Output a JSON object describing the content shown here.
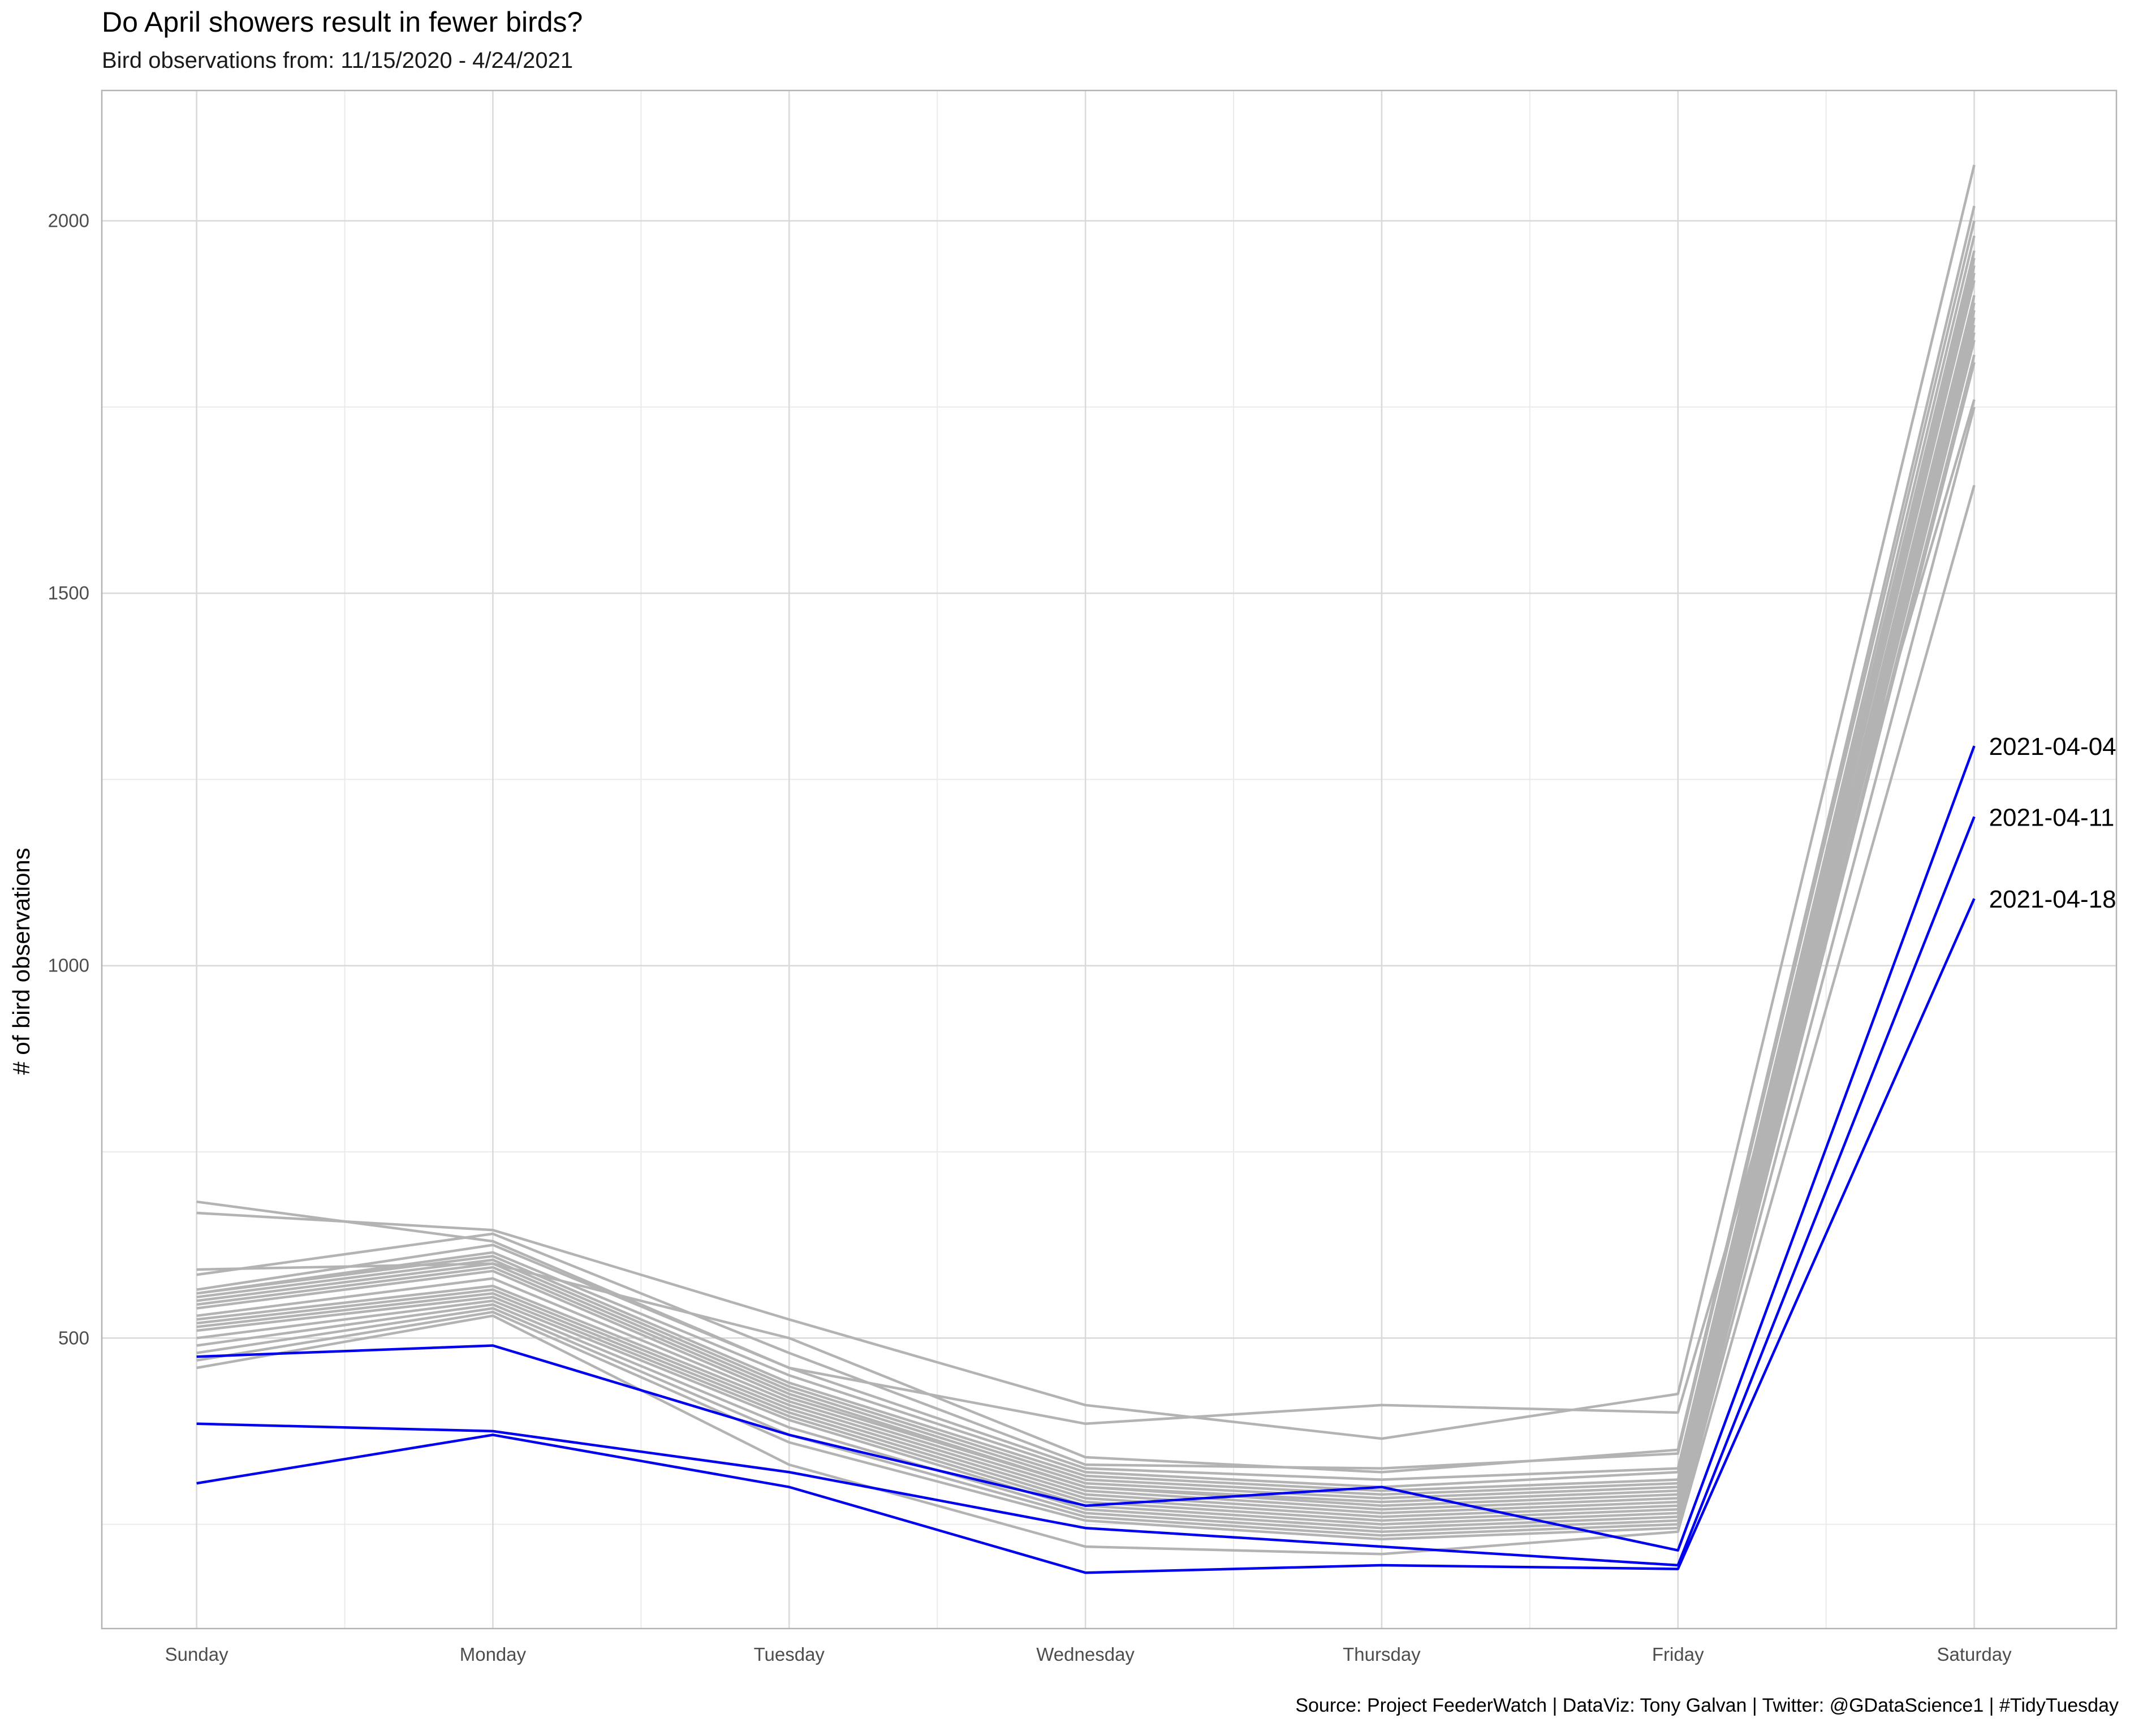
{
  "chart_data": {
    "type": "line",
    "title": "Do April showers result in fewer birds?",
    "subtitle": "Bird observations from: 11/15/2020 - 4/24/2021",
    "caption": "Source: Project FeederWatch  |  DataViz: Tony Galvan  |  Twitter: @GDataScience1  |  #TidyTuesday",
    "xlabel": "",
    "ylabel": "# of bird observations",
    "categories": [
      "Sunday",
      "Monday",
      "Tuesday",
      "Wednesday",
      "Thursday",
      "Friday",
      "Saturday"
    ],
    "ylim": [
      110,
      2175
    ],
    "yticks": [
      500,
      1000,
      1500,
      2000
    ],
    "grid": true,
    "colors": {
      "background_series": "#b3b3b3",
      "highlight_series": "#0000ee",
      "grid_major": "#d9d9d9",
      "grid_minor": "#ebebeb",
      "panel_border": "#b3b3b3"
    },
    "series": [
      {
        "values": [
          683,
          630,
          460,
          385,
          410,
          400,
          1760
        ],
        "highlight": false
      },
      {
        "values": [
          668,
          645,
          525,
          410,
          365,
          425,
          2075
        ],
        "highlight": false
      },
      {
        "values": [
          592,
          600,
          500,
          340,
          320,
          350,
          2020
        ],
        "highlight": false
      },
      {
        "values": [
          585,
          640,
          480,
          330,
          325,
          345,
          2000
        ],
        "highlight": false
      },
      {
        "values": [
          565,
          625,
          460,
          325,
          310,
          325,
          1980
        ],
        "highlight": false
      },
      {
        "values": [
          560,
          615,
          450,
          320,
          300,
          320,
          1960
        ],
        "highlight": false
      },
      {
        "values": [
          560,
          610,
          440,
          315,
          295,
          310,
          1950
        ],
        "highlight": false
      },
      {
        "values": [
          555,
          605,
          435,
          310,
          290,
          305,
          1940
        ],
        "highlight": false
      },
      {
        "values": [
          550,
          600,
          430,
          305,
          285,
          300,
          1930
        ],
        "highlight": false
      },
      {
        "values": [
          545,
          595,
          425,
          300,
          280,
          295,
          1920
        ],
        "highlight": false
      },
      {
        "values": [
          540,
          590,
          420,
          300,
          275,
          290,
          1900
        ],
        "highlight": false
      },
      {
        "values": [
          530,
          580,
          415,
          295,
          270,
          285,
          1890
        ],
        "highlight": false
      },
      {
        "values": [
          525,
          570,
          410,
          290,
          265,
          280,
          1880
        ],
        "highlight": false
      },
      {
        "values": [
          520,
          565,
          405,
          285,
          260,
          275,
          1870
        ],
        "highlight": false
      },
      {
        "values": [
          515,
          560,
          400,
          280,
          255,
          270,
          1860
        ],
        "highlight": false
      },
      {
        "values": [
          510,
          555,
          395,
          275,
          250,
          265,
          1850
        ],
        "highlight": false
      },
      {
        "values": [
          500,
          550,
          390,
          270,
          245,
          260,
          1840
        ],
        "highlight": false
      },
      {
        "values": [
          490,
          545,
          380,
          265,
          240,
          255,
          1820
        ],
        "highlight": false
      },
      {
        "values": [
          480,
          540,
          370,
          260,
          235,
          250,
          1810
        ],
        "highlight": false
      },
      {
        "values": [
          470,
          535,
          360,
          255,
          230,
          245,
          1750
        ],
        "highlight": false
      },
      {
        "values": [
          460,
          530,
          330,
          220,
          210,
          240,
          1645
        ],
        "highlight": false
      },
      {
        "name": "2021-04-04",
        "values": [
          475,
          490,
          370,
          275,
          300,
          215,
          1295
        ],
        "highlight": true
      },
      {
        "name": "2021-04-11",
        "values": [
          385,
          375,
          320,
          245,
          220,
          195,
          1200
        ],
        "highlight": true
      },
      {
        "name": "2021-04-18",
        "values": [
          305,
          370,
          300,
          185,
          195,
          190,
          1090
        ],
        "highlight": true
      }
    ]
  }
}
